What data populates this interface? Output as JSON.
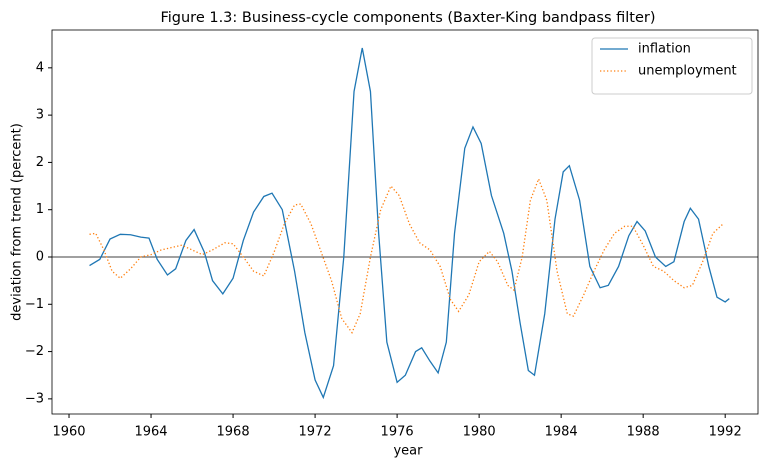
{
  "chart_data": {
    "type": "line",
    "title": "Figure 1.3: Business-cycle components (Baxter-King bandpass filter)",
    "xlabel": "year",
    "ylabel": "deviation from trend (percent)",
    "xlim": [
      1959.17,
      1993.6
    ],
    "ylim": [
      -3.32,
      4.8
    ],
    "xticks": [
      1960,
      1964,
      1968,
      1972,
      1976,
      1980,
      1984,
      1988,
      1992
    ],
    "yticks": [
      {
        "value": -3,
        "label": "−3"
      },
      {
        "value": -2,
        "label": "−2"
      },
      {
        "value": -1,
        "label": "−1"
      },
      0,
      1,
      2,
      3,
      4
    ],
    "zero_line": true,
    "legend": "upper right",
    "series": [
      {
        "name": "inflation",
        "color": "#1f77b4",
        "style": "solid",
        "x": [
          1961,
          1961.5,
          1962,
          1962.5,
          1963,
          1963.5,
          1963.9,
          1964.3,
          1964.8,
          1965.2,
          1965.7,
          1966.1,
          1966.6,
          1967.0,
          1967.5,
          1968.0,
          1968.5,
          1969.0,
          1969.5,
          1969.9,
          1970.4,
          1971.0,
          1971.5,
          1972.0,
          1972.4,
          1972.9,
          1973.4,
          1973.9,
          1974.3,
          1974.7,
          1975.1,
          1975.5,
          1976.0,
          1976.4,
          1976.9,
          1977.2,
          1977.6,
          1978.0,
          1978.4,
          1978.8,
          1979.3,
          1979.7,
          1980.1,
          1980.6,
          1981.2,
          1981.6,
          1982.0,
          1982.4,
          1982.7,
          1983.2,
          1983.7,
          1984.1,
          1984.4,
          1984.9,
          1985.4,
          1985.9,
          1986.3,
          1986.8,
          1987.3,
          1987.7,
          1988.1,
          1988.6,
          1989.1,
          1989.5,
          1990.0,
          1990.3,
          1990.7,
          1991.2,
          1991.6,
          1992.0,
          1992.2
        ],
        "values": [
          -0.18,
          -0.05,
          0.38,
          0.48,
          0.47,
          0.42,
          0.4,
          -0.05,
          -0.38,
          -0.25,
          0.35,
          0.58,
          0.1,
          -0.5,
          -0.78,
          -0.45,
          0.35,
          0.95,
          1.28,
          1.35,
          1.0,
          -0.3,
          -1.6,
          -2.6,
          -2.97,
          -2.3,
          0.0,
          3.5,
          4.42,
          3.5,
          0.5,
          -1.8,
          -2.65,
          -2.5,
          -2.0,
          -1.92,
          -2.2,
          -2.45,
          -1.8,
          0.5,
          2.3,
          2.75,
          2.4,
          1.3,
          0.5,
          -0.3,
          -1.4,
          -2.4,
          -2.5,
          -1.2,
          0.8,
          1.8,
          1.93,
          1.2,
          -0.2,
          -0.65,
          -0.6,
          -0.2,
          0.45,
          0.75,
          0.55,
          0.0,
          -0.2,
          -0.1,
          0.75,
          1.03,
          0.8,
          -0.2,
          -0.85,
          -0.95,
          -0.88
        ]
      },
      {
        "name": "unemployment",
        "color": "#ff7f0e",
        "style": "dotted",
        "x": [
          1961,
          1961.3,
          1961.7,
          1962.1,
          1962.5,
          1963.0,
          1963.5,
          1964,
          1964.5,
          1965,
          1965.5,
          1966,
          1966.5,
          1967,
          1967.6,
          1968,
          1968.5,
          1969,
          1969.5,
          1970,
          1970.5,
          1971,
          1971.3,
          1971.8,
          1972.3,
          1972.8,
          1973.3,
          1973.8,
          1974.2,
          1974.7,
          1975.2,
          1975.7,
          1976.1,
          1976.6,
          1977.1,
          1977.6,
          1978.1,
          1978.6,
          1979.0,
          1979.5,
          1980.0,
          1980.5,
          1980.9,
          1981.4,
          1981.7,
          1982.1,
          1982.5,
          1982.9,
          1983.3,
          1983.8,
          1984.3,
          1984.6,
          1985.1,
          1985.6,
          1986.1,
          1986.6,
          1987.1,
          1987.5,
          1988.0,
          1988.5,
          1989.0,
          1989.5,
          1990.0,
          1990.4,
          1990.9,
          1991.4,
          1991.9
        ],
        "values": [
          0.48,
          0.5,
          0.15,
          -0.3,
          -0.45,
          -0.25,
          0.0,
          0.05,
          0.15,
          0.2,
          0.25,
          0.15,
          0.05,
          0.15,
          0.3,
          0.28,
          0.0,
          -0.3,
          -0.4,
          0.1,
          0.7,
          1.1,
          1.12,
          0.7,
          0.1,
          -0.5,
          -1.3,
          -1.6,
          -1.2,
          0.0,
          1.0,
          1.5,
          1.3,
          0.7,
          0.3,
          0.15,
          -0.2,
          -0.9,
          -1.15,
          -0.8,
          -0.1,
          0.12,
          -0.1,
          -0.6,
          -0.7,
          0.0,
          1.2,
          1.65,
          1.2,
          -0.3,
          -1.2,
          -1.25,
          -0.8,
          -0.3,
          0.15,
          0.5,
          0.65,
          0.65,
          0.25,
          -0.2,
          -0.3,
          -0.5,
          -0.65,
          -0.6,
          -0.1,
          0.5,
          0.7
        ]
      }
    ]
  }
}
